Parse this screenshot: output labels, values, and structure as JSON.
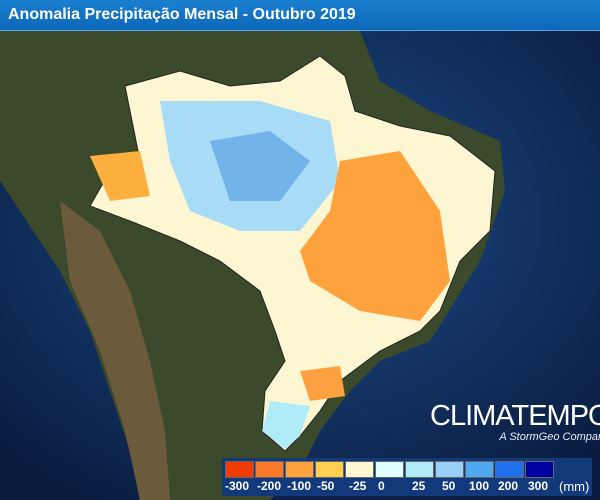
{
  "title": "Anomalia Precipitação Mensal - Outubro 2019",
  "logo": {
    "name": "CLIMATEMPO",
    "tagline": "A StormGeo Company"
  },
  "legend": {
    "unit": "(mm)",
    "colors": [
      "#f03c00",
      "#fb7a2a",
      "#fda23c",
      "#fece50",
      "#fff8d0",
      "#e0ffff",
      "#b0ecf8",
      "#96d0f8",
      "#50a8f0",
      "#2070f0",
      "#0000a0"
    ],
    "labels": [
      "-300",
      "-200",
      "-100",
      "-50",
      "-25",
      "0",
      "25",
      "50",
      "100",
      "200",
      "300"
    ]
  }
}
